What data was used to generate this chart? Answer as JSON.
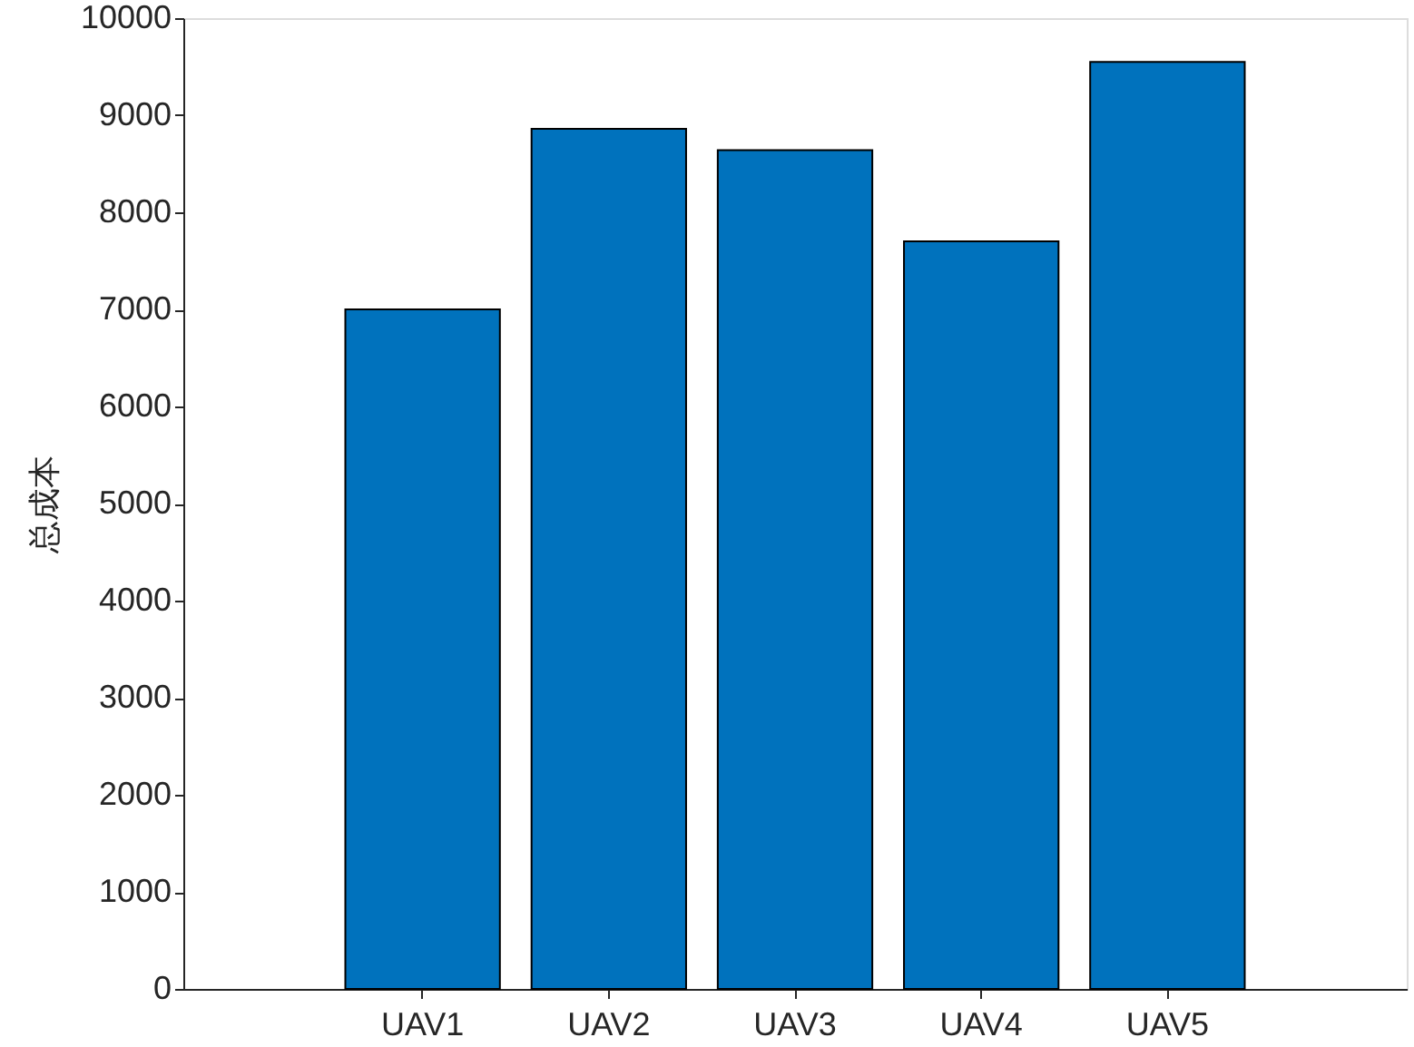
{
  "chart_data": {
    "type": "bar",
    "ylabel": "总成本",
    "categories": [
      "UAV1",
      "UAV2",
      "UAV3",
      "UAV4",
      "UAV5"
    ],
    "values": [
      7000,
      8860,
      8640,
      7700,
      9550
    ],
    "color": "#0072bd",
    "ylim": [
      0,
      10000
    ],
    "yticks": [
      0,
      1000,
      2000,
      3000,
      4000,
      5000,
      6000,
      7000,
      8000,
      9000,
      10000
    ],
    "grid": false
  }
}
